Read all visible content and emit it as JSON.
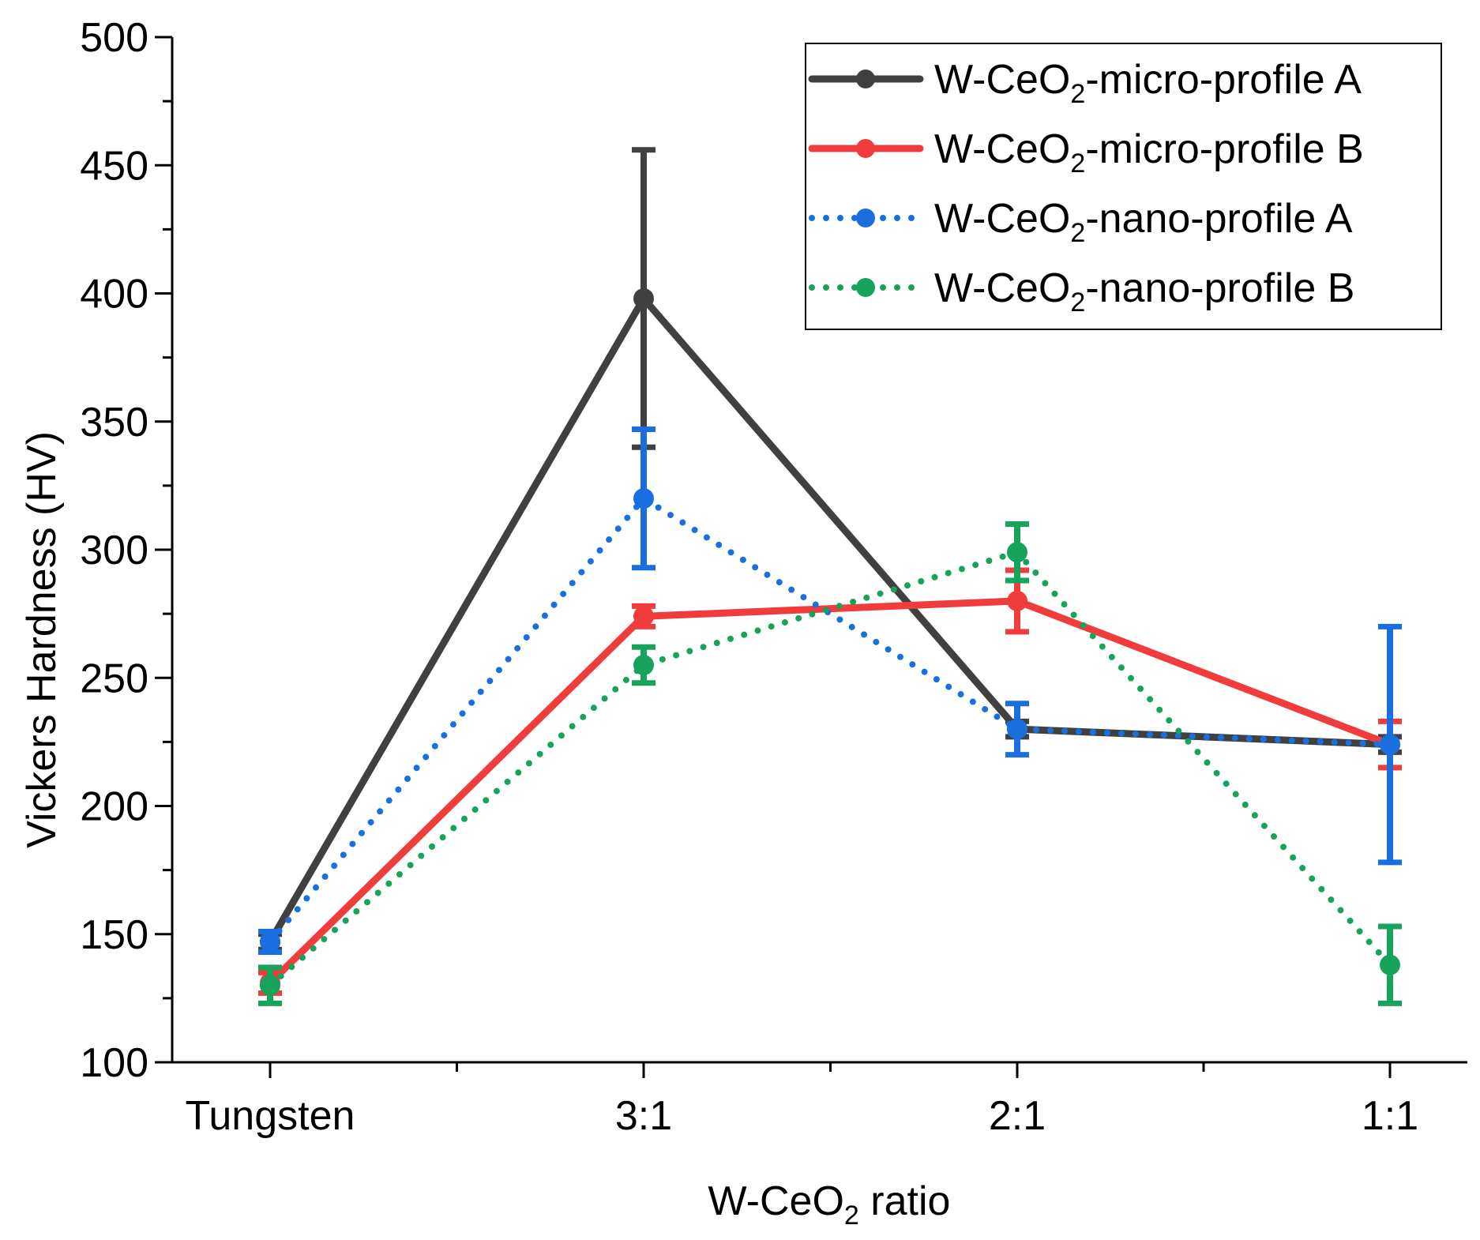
{
  "chart_data": {
    "type": "line",
    "title": "",
    "xlabel": {
      "before": "W-CeO",
      "sub": "2",
      "after": " ratio"
    },
    "ylabel": "Vickers Hardness (HV)",
    "categories": [
      "Tungsten",
      "3:1",
      "2:1",
      "1:1"
    ],
    "ylim": [
      100,
      500
    ],
    "yticks": [
      100,
      150,
      200,
      250,
      300,
      350,
      400,
      450,
      500
    ],
    "legend_position": "top-right",
    "series": [
      {
        "name": "W-CeO2-micro-profile A",
        "label": {
          "before": "W-CeO",
          "sub": "2",
          "after": "-micro-profile A"
        },
        "color": "#404040",
        "style": "solid",
        "values": [
          147,
          398,
          230,
          224
        ],
        "errors": [
          3,
          58,
          3,
          3
        ]
      },
      {
        "name": "W-CeO2-micro-profile B",
        "label": {
          "before": "W-CeO",
          "sub": "2",
          "after": "-micro-profile B"
        },
        "color": "#f03c3c",
        "style": "solid",
        "values": [
          131,
          274,
          280,
          224
        ],
        "errors": [
          4,
          4,
          12,
          9
        ]
      },
      {
        "name": "W-CeO2-nano-profile A",
        "label": {
          "before": "W-CeO",
          "sub": "2",
          "after": "-nano-profile A"
        },
        "color": "#1a6fe0",
        "style": "dotted",
        "values": [
          147,
          320,
          230,
          224
        ],
        "errors": [
          4,
          27,
          10,
          46
        ]
      },
      {
        "name": "W-CeO2-nano-profile B",
        "label": {
          "before": "W-CeO",
          "sub": "2",
          "after": "-nano-profile B"
        },
        "color": "#18a35a",
        "style": "dotted",
        "values": [
          130,
          255,
          299,
          138
        ],
        "errors": [
          7,
          7,
          11,
          15
        ]
      }
    ]
  }
}
